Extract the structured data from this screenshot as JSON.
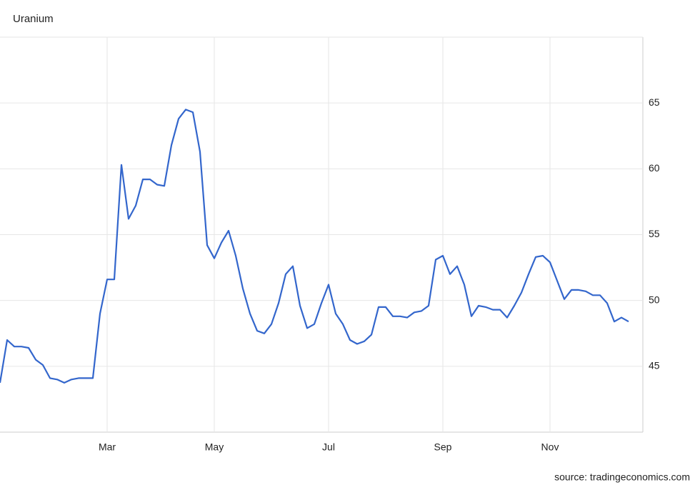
{
  "chart_data": {
    "type": "line",
    "title": "Uranium",
    "source": "source: tradingeconomics.com",
    "categories": [
      null,
      null,
      null,
      null,
      null,
      null,
      null,
      null,
      null,
      null,
      null,
      null,
      null,
      null,
      null,
      "Mar",
      null,
      null,
      null,
      null,
      null,
      null,
      null,
      null,
      null,
      null,
      null,
      null,
      null,
      null,
      "May",
      null,
      null,
      null,
      null,
      null,
      null,
      null,
      null,
      null,
      null,
      null,
      null,
      null,
      null,
      null,
      "Jul",
      null,
      null,
      null,
      null,
      null,
      null,
      null,
      null,
      null,
      null,
      null,
      null,
      null,
      null,
      null,
      "Sep",
      null,
      null,
      null,
      null,
      null,
      null,
      null,
      null,
      null,
      null,
      null,
      null,
      null,
      null,
      "Nov",
      null,
      null,
      null,
      null,
      null,
      null,
      null,
      null,
      null,
      null,
      null
    ],
    "values": [
      43.75,
      47.0,
      46.5,
      46.5,
      46.4,
      45.5,
      45.1,
      44.1,
      44.0,
      43.75,
      44.0,
      44.1,
      44.1,
      44.1,
      49.0,
      51.6,
      51.6,
      60.3,
      56.2,
      57.2,
      59.2,
      59.2,
      58.8,
      58.7,
      61.8,
      63.8,
      64.5,
      64.3,
      61.3,
      54.2,
      53.2,
      54.4,
      55.3,
      53.4,
      50.9,
      49.0,
      47.7,
      47.5,
      48.2,
      49.8,
      52.0,
      52.6,
      49.6,
      47.9,
      48.2,
      49.8,
      51.2,
      49.0,
      48.2,
      47.0,
      46.7,
      46.9,
      47.4,
      49.5,
      49.5,
      48.8,
      48.8,
      48.7,
      49.1,
      49.2,
      49.6,
      53.1,
      53.4,
      52.0,
      52.6,
      51.2,
      48.8,
      49.6,
      49.5,
      49.3,
      49.3,
      48.7,
      49.6,
      50.6,
      52.0,
      53.3,
      53.4,
      52.9,
      51.5,
      50.1,
      50.8,
      50.8,
      50.7,
      50.4,
      50.4,
      49.8,
      48.4,
      48.7,
      48.4
    ],
    "color": "#3366cc",
    "ylim": [
      40,
      70
    ],
    "yticks": [
      45,
      50,
      55,
      60,
      65
    ],
    "grid": true
  }
}
